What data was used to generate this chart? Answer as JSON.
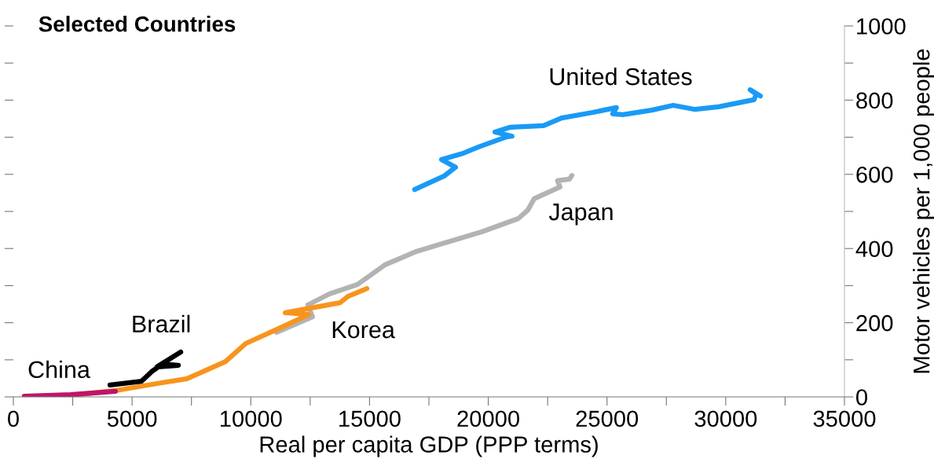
{
  "chart_data": {
    "type": "line",
    "title": "Selected Countries",
    "xlabel": "Real per capita GDP (PPP terms)",
    "ylabel": "Motor vehicles per 1,000 people",
    "series": [
      {
        "name": "United States",
        "color": "#1a9af5",
        "x": [
          16900,
          18130,
          18620,
          18030,
          18950,
          19600,
          20770,
          21000,
          20280,
          20940,
          22330,
          23090,
          24410,
          25400,
          25240,
          25670,
          26890,
          27790,
          28710,
          29700,
          31190,
          31290,
          31030,
          31460
        ],
        "values": [
          559,
          595,
          619,
          640,
          657,
          674,
          701,
          703,
          714,
          727,
          731,
          752,
          767,
          780,
          763,
          761,
          773,
          786,
          775,
          782,
          801,
          816,
          828,
          811
        ]
      },
      {
        "name": "Japan",
        "color": "#b3b3b3",
        "x": [
          11080,
          12600,
          12400,
          13330,
          14490,
          15650,
          16970,
          18060,
          19720,
          21270,
          21670,
          21930,
          23020,
          22920,
          23420,
          23520
        ],
        "values": [
          174,
          216,
          248,
          278,
          303,
          356,
          392,
          413,
          445,
          481,
          504,
          534,
          566,
          583,
          587,
          597
        ]
      },
      {
        "name": "Korea",
        "color": "#f7941d",
        "x": [
          2410,
          4300,
          6050,
          7310,
          8930,
          9790,
          11020,
          12440,
          11450,
          13760,
          14090,
          14890
        ],
        "values": [
          4,
          17,
          36,
          49,
          95,
          144,
          180,
          222,
          227,
          254,
          271,
          292
        ]
      },
      {
        "name": "Brazil",
        "color": "#000000",
        "x": [
          4070,
          5390,
          5820,
          6290,
          6950,
          6050,
          7050
        ],
        "values": [
          32,
          42,
          68,
          89,
          85,
          81,
          121
        ]
      },
      {
        "name": "China",
        "color": "#c0146a",
        "x": [
          460,
          2410,
          4300
        ],
        "values": [
          2,
          6,
          15
        ]
      }
    ],
    "xlim": [
      0,
      35000
    ],
    "xticks": [
      0,
      {
        "value": 2500,
        "label": null
      },
      5000,
      {
        "value": 7500,
        "label": null
      },
      10000,
      {
        "value": 12500,
        "label": null
      },
      15000,
      {
        "value": 17500,
        "label": null
      },
      20000,
      {
        "value": 22500,
        "label": null
      },
      25000,
      {
        "value": 27500,
        "label": null
      },
      30000,
      {
        "value": 32500,
        "label": null
      },
      35000
    ],
    "ylim": [
      0,
      1000
    ],
    "yticks": [
      0,
      {
        "value": 100,
        "label": null
      },
      200,
      {
        "value": 300,
        "label": null
      },
      400,
      {
        "value": 500,
        "label": null
      },
      600,
      {
        "value": 700,
        "label": null
      },
      800,
      {
        "value": 900,
        "label": null
      },
      1000
    ],
    "grid": false,
    "legend": false,
    "marker": "none",
    "line_style": "solid"
  }
}
